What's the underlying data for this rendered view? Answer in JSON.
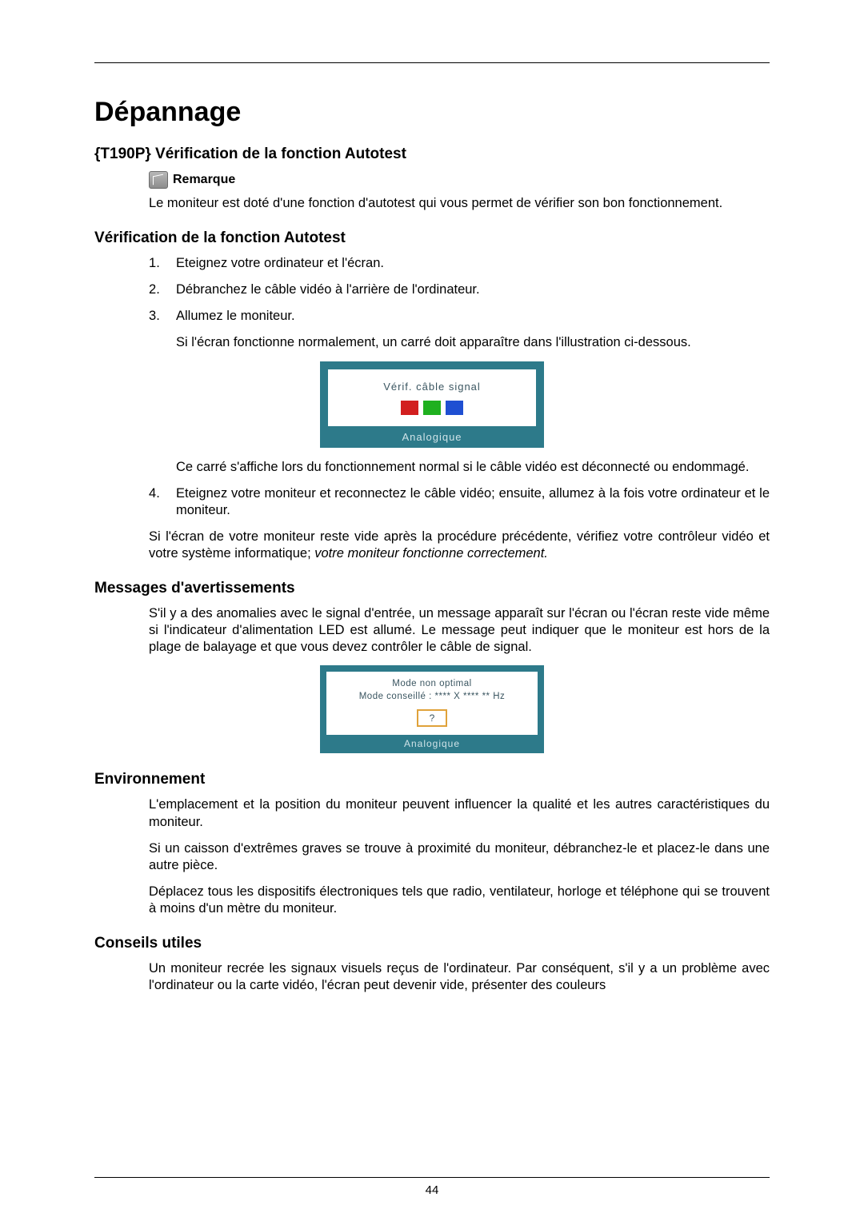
{
  "page_number": "44",
  "title": "Dépannage",
  "section1": {
    "heading": "{T190P} Vérification de la fonction Autotest",
    "note_label": "Remarque",
    "intro": "Le moniteur est doté d'une fonction d'autotest qui vous permet de vérifier son bon fonc­tionnement."
  },
  "section2": {
    "heading": "Vérification de la fonction Autotest",
    "steps": {
      "s1": "Eteignez votre ordinateur et l'écran.",
      "s2": "Débranchez le câble vidéo à l'arrière de l'ordinateur.",
      "s3": "Allumez le moniteur.",
      "s3_after": "Si l'écran fonctionne normalement, un carré doit apparaître dans l'illustration ci-dessous.",
      "s3_after2": "Ce carré s'affiche lors du fonctionnement normal si le câble vidéo est déconnecté ou endommagé.",
      "s4": "Eteignez votre moniteur et reconnectez le câble vidéo; ensuite, allumez à la fois votre ordinateur et le moniteur."
    },
    "closing_plain": "Si l'écran de votre moniteur reste vide après la procédure précédente, vérifiez votre contrôleur vidéo et votre système informatique; ",
    "closing_italic": "votre moniteur fonctionne correctement."
  },
  "figure1": {
    "text": "Vérif. câble signal",
    "footer": "Analogique",
    "colors": {
      "red": "#d21f1f",
      "green": "#1fb01f",
      "blue": "#1f4fd2"
    },
    "frame_color": "#2d7a8a"
  },
  "section3": {
    "heading": "Messages d'avertissements",
    "para": "S'il y a des anomalies avec le signal d'entrée, un message apparaît sur l'écran ou l'écran reste vide même si l'indicateur d'alimentation LED est allumé. Le message peut indiquer que le moniteur est hors de la plage de balayage et que vous devez contrôler le câble de signal."
  },
  "figure2": {
    "line1": "Mode non optimal",
    "line2": "Mode conseillé : **** X **** ** Hz",
    "qmark": "?",
    "footer": "Analogique",
    "frame_color": "#2d7a8a",
    "accent_color": "#e0a23a"
  },
  "section4": {
    "heading": "Environnement",
    "p1": "L'emplacement et la position du moniteur peuvent influencer la qualité et les autres carac­téristiques du moniteur.",
    "p2": "Si un caisson d'extrêmes graves se trouve à proximité du moniteur, débranchez-le et placez-le dans une autre pièce.",
    "p3": "Déplacez tous les dispositifs électroniques tels que radio, ventilateur, horloge et téléphone qui se trouvent à moins d'un mètre du moniteur."
  },
  "section5": {
    "heading": "Conseils utiles",
    "p1": "Un moniteur recrée les signaux visuels reçus de l'ordinateur. Par conséquent, s'il y a un problème avec l'ordinateur ou la carte vidéo, l'écran peut devenir vide, présenter des couleurs"
  }
}
